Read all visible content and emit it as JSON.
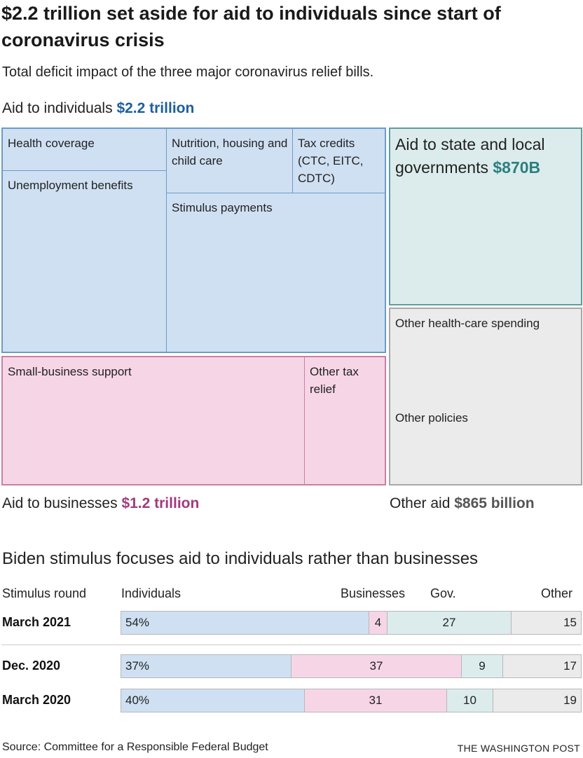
{
  "title": "$2.2 trillion set aside for aid to individuals since start of coronavirus crisis",
  "subtitle": "Total deficit impact of the three major coronavirus relief bills.",
  "colors": {
    "individuals": "#cfe0f2",
    "individuals_border": "#6b9cc8",
    "individuals_text": "#1d5f9e",
    "businesses": "#f6d6e6",
    "businesses_border": "#cc7ea4",
    "businesses_text": "#a23a7e",
    "state_local": "#dcecec",
    "state_local_border": "#5f9e9e",
    "state_local_text": "#2d7f7f",
    "other": "#ebebeb",
    "other_border": "#a8a8a8",
    "other_text": "#555555"
  },
  "groups": {
    "individuals": {
      "label": "Aid to individuals ",
      "amount": "$2.2 trillion"
    },
    "businesses": {
      "label": "Aid to businesses ",
      "amount": "$1.2 trillion"
    },
    "other": {
      "label": "Other aid ",
      "amount": "$865 billion"
    },
    "state_local": {
      "label": "Aid to state and local governments ",
      "amount": "$870B"
    }
  },
  "tiles": {
    "health_coverage": "Health coverage",
    "unemployment": "Unemployment benefits",
    "nutrition": "Nutrition, housing and child care",
    "tax_credits": "Tax credits (CTC, EITC, CDTC)",
    "stimulus_payments": "Stimulus payments",
    "small_business": "Small-business support",
    "other_tax_relief": "Other tax relief",
    "other_health": "Other health-care spending",
    "other_policies": "Other policies"
  },
  "chart_data": [
    {
      "type": "treemap",
      "title": "$2.2 trillion set aside for aid to individuals since start of coronavirus crisis",
      "groups": [
        {
          "name": "Aid to individuals",
          "total": "$2.2 trillion",
          "items": [
            "Health coverage",
            "Unemployment benefits",
            "Nutrition, housing and child care",
            "Tax credits (CTC, EITC, CDTC)",
            "Stimulus payments"
          ]
        },
        {
          "name": "Aid to businesses",
          "total": "$1.2 trillion",
          "items": [
            "Small-business support",
            "Other tax relief"
          ]
        },
        {
          "name": "Aid to state and local governments",
          "total": "$870B",
          "items": []
        },
        {
          "name": "Other aid",
          "total": "$865 billion",
          "items": [
            "Other health-care spending",
            "Other policies"
          ]
        }
      ]
    },
    {
      "type": "bar",
      "stacked": true,
      "orientation": "horizontal",
      "title": "Biden stimulus focuses aid to individuals rather than businesses",
      "row_header": "Stimulus round",
      "categories": [
        "March 2021",
        "Dec. 2020",
        "March 2020"
      ],
      "series": [
        {
          "name": "Individuals",
          "values": [
            54,
            37,
            40
          ],
          "labels": [
            "54%",
            "37%",
            "40%"
          ]
        },
        {
          "name": "Businesses",
          "values": [
            4,
            37,
            31
          ],
          "labels": [
            "4",
            "37",
            "31"
          ]
        },
        {
          "name": "Gov.",
          "values": [
            27,
            9,
            10
          ],
          "labels": [
            "27",
            "9",
            "10"
          ]
        },
        {
          "name": "Other",
          "values": [
            15,
            17,
            19
          ],
          "labels": [
            "15",
            "17",
            "19"
          ]
        }
      ],
      "xlim": [
        0,
        100
      ]
    }
  ],
  "source": "Source: Committee for a Responsible Federal Budget",
  "credit": "THE WASHINGTON POST"
}
